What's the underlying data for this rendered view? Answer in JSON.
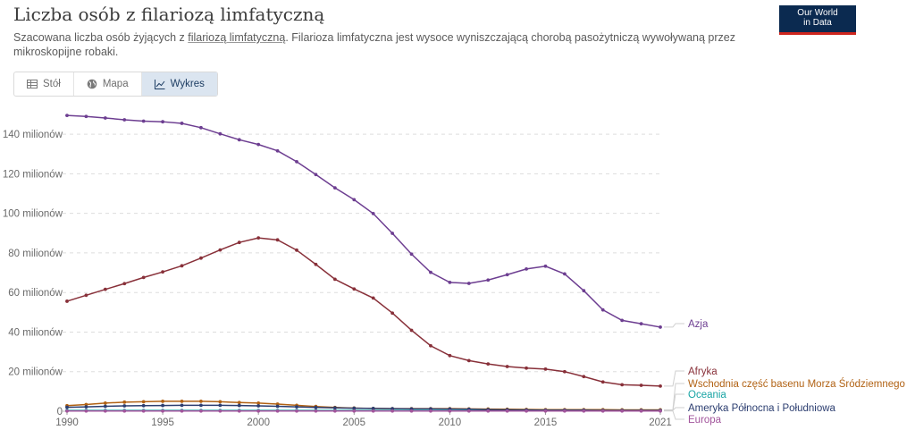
{
  "header": {
    "title": "Liczba osób z filariozą limfatyczną",
    "subtitle_before": "Szacowana liczba osób żyjących z ",
    "subtitle_link": "filariozą limfatyczną",
    "subtitle_after": ". Filarioza limfatyczna jest wysoce wyniszczającą chorobą pasożytniczą wywoływaną przez mikroskopijne robaki.",
    "logo_line1": "Our World",
    "logo_line2": "in Data"
  },
  "tabs": [
    {
      "label": "Stół",
      "icon": "table-icon",
      "active": false
    },
    {
      "label": "Mapa",
      "icon": "globe-icon",
      "active": false
    },
    {
      "label": "Wykres",
      "icon": "line-chart-icon",
      "active": true
    }
  ],
  "chart_data": {
    "type": "line",
    "title": "Liczba osób z filariozą limfatyczną",
    "xlim": [
      1990,
      2021
    ],
    "ylim": [
      0,
      150
    ],
    "y_ticks": [
      0,
      20,
      40,
      60,
      80,
      100,
      120,
      140
    ],
    "y_tick_labels": [
      "0",
      "20 milionów",
      "40 milionów",
      "60 milionów",
      "80 milionów",
      "100 milionów",
      "120 milionów",
      "140 milionów"
    ],
    "x_ticks": [
      1990,
      1995,
      2000,
      2005,
      2010,
      2015,
      2021
    ],
    "x_tick_labels": [
      "1990",
      "1995",
      "2000",
      "2005",
      "2010",
      "2015",
      "2021"
    ],
    "grid": "horizontal-dashed",
    "legend": "right, labels at line ends",
    "x": [
      1990,
      1991,
      1992,
      1993,
      1994,
      1995,
      1996,
      1997,
      1998,
      1999,
      2000,
      2001,
      2002,
      2003,
      2004,
      2005,
      2006,
      2007,
      2008,
      2009,
      2010,
      2011,
      2012,
      2013,
      2014,
      2015,
      2016,
      2017,
      2018,
      2019,
      2020,
      2021
    ],
    "series": [
      {
        "name": "Azja",
        "color": "#6d3e91",
        "values": [
          149.5,
          149,
          148.2,
          147.3,
          146.6,
          146.3,
          145.5,
          143.3,
          140.2,
          137.2,
          134.8,
          131.6,
          126.1,
          119.6,
          112.9,
          106.9,
          99.9,
          89.9,
          79.4,
          70.2,
          65.1,
          64.6,
          66.3,
          69,
          71.9,
          73.3,
          69.4,
          60.9,
          51.2,
          45.9,
          44.2,
          42.5
        ]
      },
      {
        "name": "Afryka",
        "color": "#883039",
        "values": [
          55.6,
          58.6,
          61.6,
          64.5,
          67.6,
          70.4,
          73.5,
          77.4,
          81.5,
          85.3,
          87.6,
          86.6,
          81.4,
          74.2,
          66.7,
          61.8,
          57.2,
          49.6,
          40.9,
          33.1,
          28.1,
          25.6,
          23.9,
          22.6,
          21.8,
          21.3,
          20,
          17.5,
          14.8,
          13.4,
          13.1,
          12.7
        ]
      },
      {
        "name": "Wschodnia część basenu Morza Śródziemnego",
        "color": "#b16214",
        "values": [
          2.8,
          3.4,
          4.1,
          4.6,
          4.8,
          5,
          5,
          5,
          4.8,
          4.4,
          4.1,
          3.6,
          3,
          2.4,
          1.9,
          1.6,
          1.4,
          1.3,
          1.3,
          1.3,
          1.3,
          1.2,
          1.1,
          1,
          0.9,
          0.8,
          0.8,
          0.8,
          0.8,
          0.7,
          0.7,
          0.7
        ]
      },
      {
        "name": "Oceania",
        "color": "#18a4a4",
        "values": [
          0.4,
          0.4,
          0.4,
          0.4,
          0.4,
          0.4,
          0.4,
          0.4,
          0.4,
          0.4,
          0.4,
          0.4,
          0.4,
          0.4,
          0.4,
          0.4,
          0.4,
          0.4,
          0.4,
          0.4,
          0.3,
          0.3,
          0.3,
          0.3,
          0.3,
          0.3,
          0.3,
          0.3,
          0.3,
          0.3,
          0.3,
          0.3
        ]
      },
      {
        "name": "Ameryka Północna i Południowa",
        "color": "#2c3e70",
        "values": [
          2,
          2.2,
          2.5,
          2.7,
          2.8,
          2.9,
          3,
          3,
          3,
          2.9,
          2.7,
          2.5,
          2.2,
          1.9,
          1.7,
          1.5,
          1.4,
          1.3,
          1.2,
          1.2,
          1.1,
          1,
          0.8,
          0.7,
          0.6,
          0.5,
          0.5,
          0.5,
          0.4,
          0.4,
          0.4,
          0.4
        ]
      },
      {
        "name": "Europa",
        "color": "#a2559c",
        "values": [
          0.1,
          0.1,
          0.1,
          0.1,
          0.1,
          0.1,
          0.1,
          0.1,
          0.1,
          0.1,
          0.1,
          0.1,
          0.1,
          0.1,
          0.1,
          0.1,
          0.1,
          0.1,
          0.1,
          0.1,
          0.1,
          0.1,
          0.1,
          0.1,
          0.1,
          0.1,
          0.1,
          0.1,
          0.1,
          0.1,
          0.1,
          0.1
        ]
      }
    ]
  }
}
